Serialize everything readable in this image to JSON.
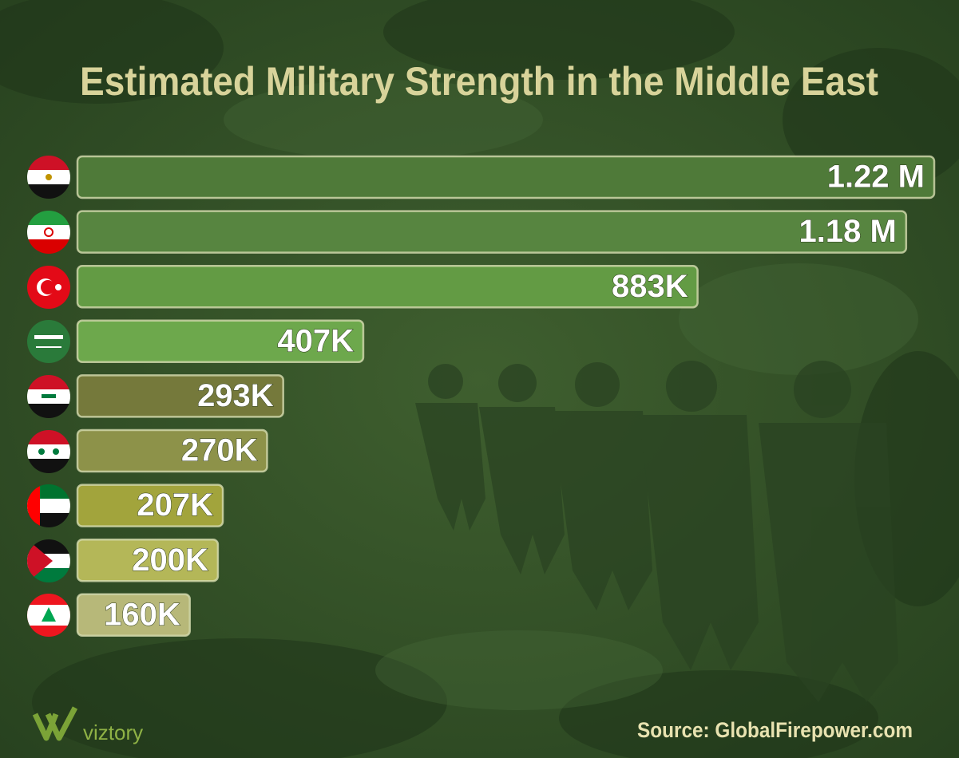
{
  "chart_data": {
    "type": "hbar",
    "title": "Estimated Military Strength in the Middle East",
    "values": [
      1220000,
      1180000,
      883000,
      407000,
      293000,
      270000,
      207000,
      200000,
      160000
    ],
    "value_labels": [
      "1.22 M",
      "1.18 M",
      "883K",
      "407K",
      "293K",
      "270K",
      "207K",
      "200K",
      "160K"
    ],
    "colors": [
      "#4f7a39",
      "#578540",
      "#639b44",
      "#6da84c",
      "#75793b",
      "#8d9249",
      "#a2a43c",
      "#b4b758",
      "#b7b879"
    ],
    "source": "Source: GlobalFirepower.com",
    "logo": "viztory"
  }
}
